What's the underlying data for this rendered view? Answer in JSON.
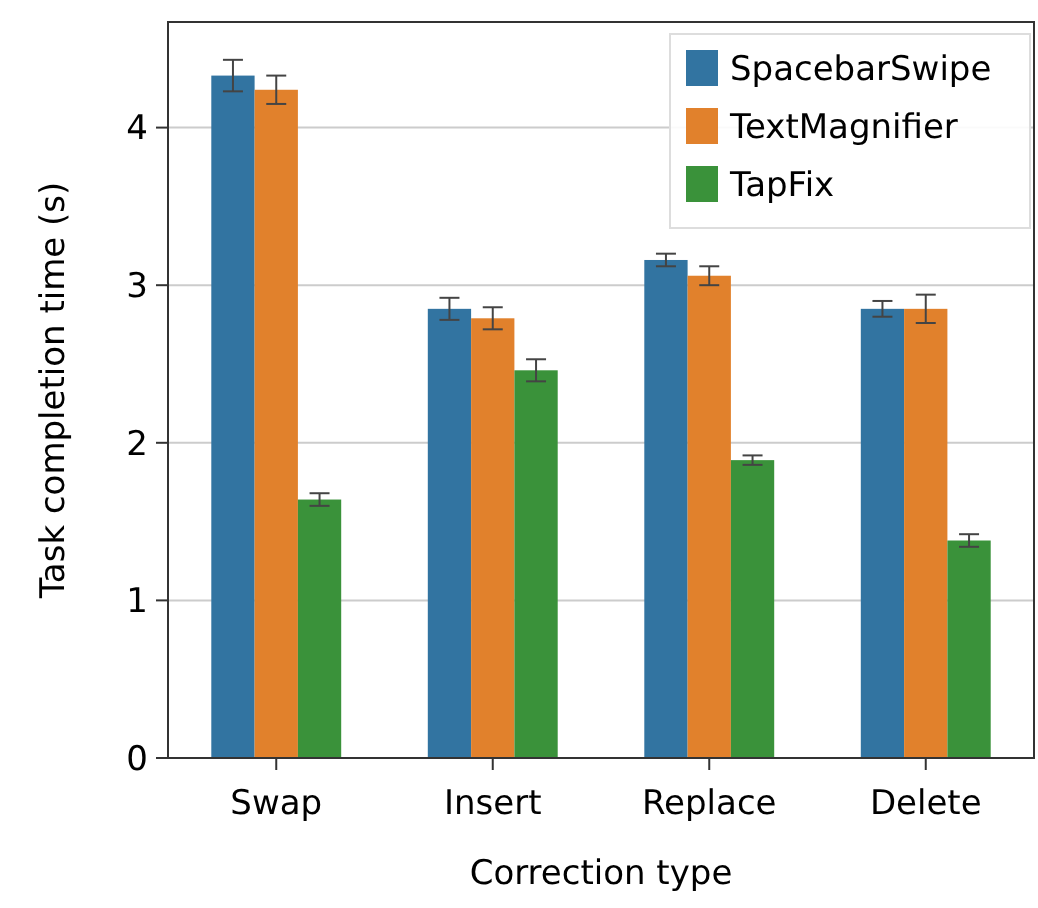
{
  "chart_data": {
    "type": "bar",
    "xlabel": "Correction type",
    "ylabel": "Task completion time (s)",
    "categories": [
      "Swap",
      "Insert",
      "Replace",
      "Delete"
    ],
    "series": [
      {
        "name": "SpacebarSwipe",
        "color": "#3274a1",
        "values": [
          4.33,
          2.85,
          3.16,
          2.85
        ],
        "errors": [
          0.1,
          0.07,
          0.04,
          0.05
        ]
      },
      {
        "name": "TextMagnifier",
        "color": "#e1812c",
        "values": [
          4.24,
          2.79,
          3.06,
          2.85
        ],
        "errors": [
          0.09,
          0.07,
          0.06,
          0.09
        ]
      },
      {
        "name": "TapFix",
        "color": "#3a923a",
        "values": [
          1.64,
          2.46,
          1.89,
          1.38
        ],
        "errors": [
          0.04,
          0.07,
          0.03,
          0.04
        ]
      }
    ],
    "ylim": [
      0,
      4.67
    ],
    "yticks": [
      0,
      1,
      2,
      3,
      4
    ],
    "grid": "y",
    "legend": "top right"
  }
}
